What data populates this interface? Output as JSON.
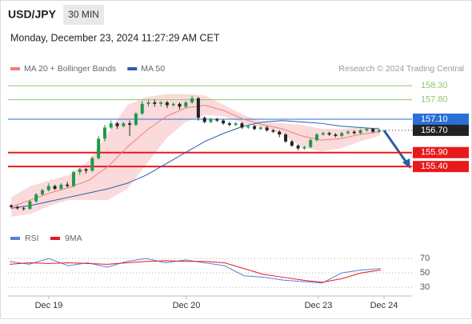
{
  "header": {
    "symbol": "USD/JPY",
    "interval": "30 MIN",
    "datetime": "Monday, December 23, 2024 11:27:29 AM CET"
  },
  "chart_data": [
    {
      "type": "candlestick",
      "credit": "Research © 2024 Trading Central",
      "ylim": [
        153.25,
        158.65
      ],
      "up_color": "#1e9a4a",
      "down_color": "#222222",
      "xtick_labels": [
        "Dec 19",
        "Dec 20",
        "Dec 23",
        "Dec 24"
      ],
      "ohlc": [
        [
          154.0,
          154.05,
          153.9,
          153.95
        ],
        [
          153.95,
          154.0,
          153.85,
          153.9
        ],
        [
          153.9,
          153.95,
          153.82,
          153.88
        ],
        [
          153.88,
          154.2,
          153.85,
          154.15
        ],
        [
          154.15,
          154.45,
          154.1,
          154.4
        ],
        [
          154.4,
          154.6,
          154.35,
          154.55
        ],
        [
          154.55,
          154.8,
          154.5,
          154.7
        ],
        [
          154.7,
          154.75,
          154.55,
          154.6
        ],
        [
          154.6,
          154.8,
          154.55,
          154.75
        ],
        [
          154.75,
          154.85,
          154.65,
          154.7
        ],
        [
          154.7,
          155.25,
          154.65,
          155.2
        ],
        [
          155.2,
          155.35,
          155.1,
          155.3
        ],
        [
          155.3,
          155.35,
          155.15,
          155.25
        ],
        [
          155.25,
          155.75,
          155.2,
          155.7
        ],
        [
          155.7,
          156.5,
          155.65,
          156.4
        ],
        [
          156.4,
          156.9,
          156.3,
          156.8
        ],
        [
          156.8,
          157.05,
          156.75,
          156.95
        ],
        [
          156.95,
          157.0,
          156.75,
          156.85
        ],
        [
          156.85,
          157.0,
          156.8,
          156.95
        ],
        [
          156.95,
          157.05,
          156.5,
          156.9
        ],
        [
          156.9,
          157.35,
          156.85,
          157.3
        ],
        [
          157.3,
          157.75,
          157.25,
          157.65
        ],
        [
          157.65,
          157.8,
          157.55,
          157.7
        ],
        [
          157.7,
          157.8,
          157.55,
          157.65
        ],
        [
          157.65,
          157.75,
          157.55,
          157.7
        ],
        [
          157.7,
          157.75,
          157.5,
          157.6
        ],
        [
          157.6,
          157.7,
          157.55,
          157.65
        ],
        [
          157.65,
          157.7,
          157.45,
          157.55
        ],
        [
          157.55,
          157.75,
          157.5,
          157.7
        ],
        [
          157.7,
          157.95,
          157.65,
          157.85
        ],
        [
          157.85,
          157.9,
          157.05,
          157.15
        ],
        [
          157.15,
          157.2,
          156.95,
          157.0
        ],
        [
          157.0,
          157.15,
          156.95,
          157.1
        ],
        [
          157.1,
          157.15,
          157.0,
          157.05
        ],
        [
          157.05,
          157.1,
          156.9,
          156.95
        ],
        [
          156.95,
          157.0,
          156.85,
          156.9
        ],
        [
          156.9,
          157.0,
          156.85,
          156.95
        ],
        [
          156.95,
          157.0,
          156.75,
          156.8
        ],
        [
          156.8,
          156.9,
          156.75,
          156.85
        ],
        [
          156.85,
          156.9,
          156.7,
          156.75
        ],
        [
          156.75,
          156.85,
          156.7,
          156.8
        ],
        [
          156.8,
          156.85,
          156.65,
          156.7
        ],
        [
          156.7,
          156.75,
          156.6,
          156.65
        ],
        [
          156.65,
          156.7,
          156.45,
          156.55
        ],
        [
          156.55,
          156.6,
          156.25,
          156.3
        ],
        [
          156.3,
          156.35,
          156.1,
          156.15
        ],
        [
          156.15,
          156.2,
          155.98,
          156.05
        ],
        [
          156.05,
          156.15,
          156.0,
          156.1
        ],
        [
          156.1,
          156.4,
          156.05,
          156.35
        ],
        [
          156.35,
          156.6,
          156.3,
          156.55
        ],
        [
          156.55,
          156.65,
          156.5,
          156.6
        ],
        [
          156.6,
          156.65,
          156.5,
          156.55
        ],
        [
          156.55,
          156.6,
          156.45,
          156.5
        ],
        [
          156.5,
          156.65,
          156.45,
          156.6
        ],
        [
          156.6,
          156.7,
          156.55,
          156.65
        ],
        [
          156.65,
          156.7,
          156.55,
          156.6
        ],
        [
          156.6,
          156.75,
          156.55,
          156.7
        ],
        [
          156.7,
          156.8,
          156.65,
          156.75
        ],
        [
          156.75,
          156.78,
          156.6,
          156.65
        ],
        [
          156.65,
          156.75,
          156.6,
          156.7
        ]
      ],
      "series": [
        {
          "name": "MA 20 + Bollinger Bands",
          "color": "#f08080",
          "band_color": "#fadada",
          "values": [
            153.95,
            154.2,
            154.45,
            154.65,
            154.9,
            155.4,
            156.1,
            156.7,
            157.2,
            157.5,
            157.6,
            157.4,
            157.1,
            156.9,
            156.75,
            156.5,
            156.35,
            156.4,
            156.55,
            156.65
          ],
          "upper": [
            154.3,
            154.7,
            154.9,
            155.1,
            155.6,
            156.6,
            157.6,
            157.9,
            158.0,
            158.0,
            157.95,
            157.6,
            157.25,
            157.0,
            156.95,
            156.9,
            156.75,
            156.75,
            156.8,
            156.8
          ],
          "lower": [
            153.6,
            153.7,
            154.0,
            154.2,
            154.2,
            154.2,
            154.6,
            155.5,
            156.4,
            157.0,
            157.25,
            157.2,
            156.95,
            156.8,
            156.55,
            156.1,
            155.95,
            156.05,
            156.3,
            156.5
          ]
        },
        {
          "name": "MA 50",
          "color": "#2b5ea8",
          "values": [
            153.9,
            154.0,
            154.15,
            154.3,
            154.45,
            154.6,
            154.8,
            155.1,
            155.5,
            155.9,
            156.3,
            156.6,
            156.85,
            157.0,
            157.05,
            157.0,
            156.95,
            156.85,
            156.8,
            156.75
          ]
        }
      ],
      "levels": [
        {
          "value": 158.3,
          "label": "158.30",
          "color": "#8cc86c",
          "boxed": false,
          "bold": false,
          "dotted": false
        },
        {
          "value": 157.8,
          "label": "157.80",
          "color": "#8cc86c",
          "boxed": false,
          "bold": false,
          "dotted": false
        },
        {
          "value": 157.1,
          "label": "157.10",
          "color": "#2b6fd6",
          "boxed": true,
          "bold": false,
          "dotted": false
        },
        {
          "value": 156.7,
          "label": "156.70",
          "color": "#222222",
          "boxed": true,
          "bold": false,
          "dotted": true
        },
        {
          "value": 155.9,
          "label": "155.90",
          "color": "#e8191c",
          "boxed": true,
          "bold": true,
          "dotted": false
        },
        {
          "value": 155.4,
          "label": "155.40",
          "color": "#e8191c",
          "boxed": true,
          "bold": true,
          "dotted": false
        }
      ]
    },
    {
      "type": "line",
      "ylim": [
        18,
        79
      ],
      "yticks": [
        70,
        50,
        30
      ],
      "series": [
        {
          "name": "RSI",
          "color": "#5b7fe0",
          "values": [
            66,
            62,
            70,
            60,
            64,
            58,
            66,
            70,
            64,
            68,
            64,
            60,
            46,
            44,
            40,
            38,
            36,
            50,
            54,
            56
          ]
        },
        {
          "name": "9MA",
          "color": "#e8191c",
          "values": [
            62,
            64,
            63,
            64,
            63,
            62,
            64,
            66,
            67,
            66,
            66,
            64,
            56,
            48,
            44,
            40,
            37,
            42,
            50,
            54
          ]
        }
      ]
    }
  ]
}
